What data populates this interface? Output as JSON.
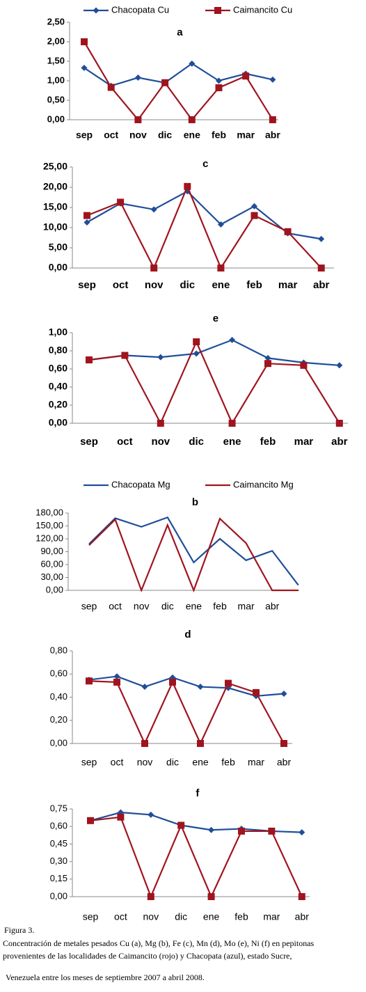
{
  "chart_data": [
    {
      "type": "line",
      "title": "a",
      "legend": "top",
      "categories": [
        "sep",
        "oct",
        "nov",
        "dic",
        "ene",
        "feb",
        "mar",
        "abr"
      ],
      "ylim": [
        0,
        2.5
      ],
      "yticks": [
        {
          "value": 0,
          "label": "0,00"
        },
        {
          "value": 0.5,
          "label": "0,50"
        },
        {
          "value": 1,
          "label": "1,00"
        },
        {
          "value": 1.5,
          "label": "1,50"
        },
        {
          "value": 2,
          "label": "2,00"
        },
        {
          "value": 2.5,
          "label": "2,50"
        }
      ],
      "markers": true,
      "series": [
        {
          "name": "Chacopata Cu",
          "color": "#1f4e99",
          "marker": "diamond",
          "values": [
            1.33,
            0.87,
            1.08,
            0.95,
            1.44,
            1.0,
            1.18,
            1.03
          ]
        },
        {
          "name": "Caimancito  Cu",
          "color": "#a0141e",
          "marker": "square",
          "values": [
            2.0,
            0.83,
            0,
            0.95,
            0,
            0.82,
            1.12,
            0
          ]
        }
      ]
    },
    {
      "type": "line",
      "title": "c",
      "categories": [
        "sep",
        "oct",
        "nov",
        "dic",
        "ene",
        "feb",
        "mar",
        "abr"
      ],
      "ylim": [
        0,
        25
      ],
      "yticks": [
        {
          "value": 0,
          "label": "0,00"
        },
        {
          "value": 5,
          "label": "5,00"
        },
        {
          "value": 10,
          "label": "10,00"
        },
        {
          "value": 15,
          "label": "15,00"
        },
        {
          "value": 20,
          "label": "20,00"
        },
        {
          "value": 25,
          "label": "25,00"
        }
      ],
      "markers": true,
      "series": [
        {
          "color": "#1f4e99",
          "marker": "diamond",
          "values": [
            11.3,
            16.0,
            14.5,
            19.0,
            10.8,
            15.3,
            8.6,
            7.2
          ]
        },
        {
          "color": "#a0141e",
          "marker": "square",
          "values": [
            13.0,
            16.3,
            0,
            20.2,
            0,
            13.0,
            9.0,
            0
          ]
        }
      ]
    },
    {
      "type": "line",
      "title": "e",
      "categories": [
        "sep",
        "oct",
        "nov",
        "dic",
        "ene",
        "feb",
        "mar",
        "abr"
      ],
      "ylim": [
        0,
        1
      ],
      "yticks": [
        {
          "value": 0,
          "label": "0,00"
        },
        {
          "value": 0.2,
          "label": "0,20"
        },
        {
          "value": 0.4,
          "label": "0,40"
        },
        {
          "value": 0.6,
          "label": "0,60"
        },
        {
          "value": 0.8,
          "label": "0,80"
        },
        {
          "value": 1,
          "label": "1,00"
        }
      ],
      "markers": true,
      "series": [
        {
          "color": "#1f4e99",
          "marker": "diamond",
          "values": [
            0.7,
            0.75,
            0.73,
            0.77,
            0.92,
            0.72,
            0.67,
            0.64
          ]
        },
        {
          "color": "#a0141e",
          "marker": "square",
          "values": [
            0.7,
            0.75,
            0,
            0.9,
            0,
            0.66,
            0.64,
            0
          ]
        }
      ]
    },
    {
      "type": "line",
      "title": "b",
      "legend": "top",
      "categories": [
        "sep",
        "oct",
        "nov",
        "dic",
        "ene",
        "feb",
        "mar",
        "abr",
        null
      ],
      "ylim": [
        0,
        180
      ],
      "yticks": [
        {
          "value": 0,
          "label": "0,00"
        },
        {
          "value": 30,
          "label": "30,00"
        },
        {
          "value": 60,
          "label": "60,00"
        },
        {
          "value": 90,
          "label": "90,00"
        },
        {
          "value": 120,
          "label": "120,00"
        },
        {
          "value": 150,
          "label": "150,00"
        },
        {
          "value": 180,
          "label": "180,00"
        }
      ],
      "markers": false,
      "series": [
        {
          "name": "Chacopata Mg",
          "color": "#1f4e99",
          "values": [
            108,
            168,
            148,
            170,
            65,
            120,
            70,
            92,
            12
          ]
        },
        {
          "name": "Caimancito  Mg",
          "color": "#a0141e",
          "values": [
            105,
            165,
            0,
            152,
            0,
            167,
            110,
            0,
            0
          ]
        }
      ]
    },
    {
      "type": "line",
      "title": "d",
      "categories": [
        "sep",
        "oct",
        "nov",
        "dic",
        "ene",
        "feb",
        "mar",
        "abr"
      ],
      "ylim": [
        0,
        0.8
      ],
      "yticks": [
        {
          "value": 0,
          "label": "0,00"
        },
        {
          "value": 0.2,
          "label": "0,20"
        },
        {
          "value": 0.4,
          "label": "0,40"
        },
        {
          "value": 0.6,
          "label": "0,60"
        },
        {
          "value": 0.8,
          "label": "0,80"
        }
      ],
      "markers": true,
      "series": [
        {
          "color": "#1f4e99",
          "marker": "diamond",
          "values": [
            0.55,
            0.58,
            0.49,
            0.57,
            0.49,
            0.48,
            0.41,
            0.43
          ]
        },
        {
          "color": "#a0141e",
          "marker": "square",
          "values": [
            0.54,
            0.53,
            0,
            0.53,
            0,
            0.52,
            0.44,
            0
          ]
        }
      ]
    },
    {
      "type": "line",
      "title": "f",
      "categories": [
        "sep",
        "oct",
        "nov",
        "dic",
        "ene",
        "feb",
        "mar",
        "abr"
      ],
      "ylim": [
        0,
        0.75
      ],
      "yticks": [
        {
          "value": 0,
          "label": "0,00"
        },
        {
          "value": 0.15,
          "label": "0,15"
        },
        {
          "value": 0.3,
          "label": "0,30"
        },
        {
          "value": 0.45,
          "label": "0,45"
        },
        {
          "value": 0.6,
          "label": "0,60"
        },
        {
          "value": 0.75,
          "label": "0,75"
        }
      ],
      "markers": true,
      "series": [
        {
          "color": "#1f4e99",
          "marker": "diamond",
          "values": [
            0.65,
            0.72,
            0.7,
            0.61,
            0.57,
            0.58,
            0.56,
            0.55
          ]
        },
        {
          "color": "#a0141e",
          "marker": "square",
          "values": [
            0.65,
            0.68,
            0,
            0.61,
            0,
            0.56,
            0.56,
            0
          ]
        }
      ]
    }
  ],
  "caption": {
    "label": "Figura 3.",
    "lines": [
      "Concentración de metales pesados Cu (a), Mg (b), Fe (c), Mn (d), Mo (e), Ni (f) en pepitonas",
      "provenientes de las localidades de Caimancito (rojo) y Chacopata (azul), estado Sucre,",
      "Venezuela entre los meses de septiembre 2007 a abril 2008."
    ]
  }
}
